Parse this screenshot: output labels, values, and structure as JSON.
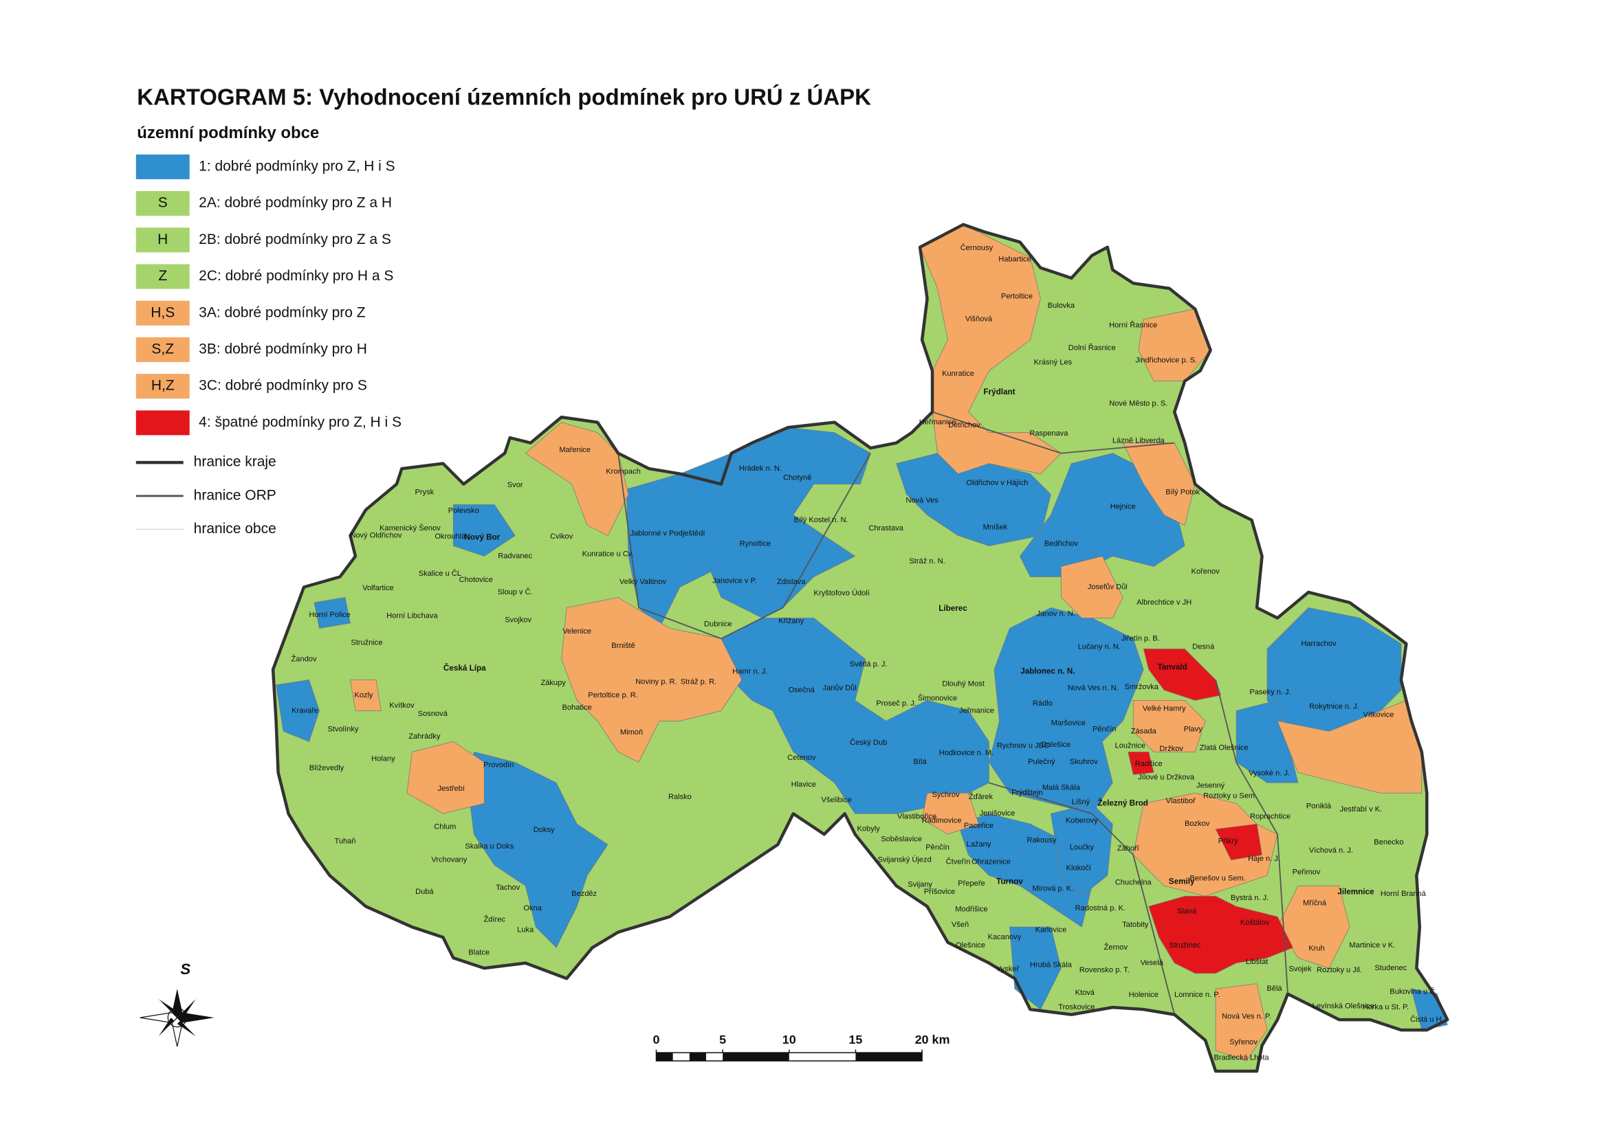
{
  "title": "KARTOGRAM 5: Vyhodnocení územních podmínek pro URÚ z ÚAPK",
  "legend": {
    "title": "územní podmínky obce",
    "items": [
      {
        "label": "1: dobré podmínky pro Z, H i S",
        "color": "#2f8fcf"
      },
      {
        "code": "S",
        "label": "2A: dobré podmínky pro Z a H",
        "color": "#a5d46c"
      },
      {
        "code": "H",
        "label": "2B: dobré podmínky pro Z a S",
        "color": "#a5d46c"
      },
      {
        "code": "Z",
        "label": "2C: dobré podmínky pro H a S",
        "color": "#a5d46c"
      },
      {
        "code": "H,S",
        "label": "3A: dobré podmínky pro Z",
        "color": "#f5a864"
      },
      {
        "code": "S,Z",
        "label": "3B: dobré podmínky pro H",
        "color": "#f5a864"
      },
      {
        "code": "H,Z",
        "label": "3C: dobré podmínky pro S",
        "color": "#f5a864"
      },
      {
        "label": "4: špatné podmínky pro Z, H i S",
        "color": "#e3161c"
      }
    ],
    "lines": [
      {
        "label": "hranice kraje",
        "color": "#333333"
      },
      {
        "label": "hranice ORP",
        "color": "#555555"
      },
      {
        "label": "hranice obce",
        "color": "#dddddd"
      }
    ]
  },
  "north_arrow": "S",
  "scale_bar": {
    "ticks": [
      0,
      5,
      10,
      15,
      {
        "value": 20,
        "label": "20 km"
      }
    ]
  },
  "municipalities": [
    "Černousy",
    "Habartice",
    "Pertoltice",
    "Bulovka",
    "Višňová",
    "Horní Řasnice",
    "Dolní Řasnice",
    "Krásný Les",
    "Jindřichovice p. S.",
    "Kunratice",
    "Frýdlant",
    "Nové Město p. S.",
    "Heřmanice",
    "Dětřichov",
    "Raspenava",
    "Lázně Libverda",
    "Oldřichov v Hájích",
    "Bílý Potok",
    "Hejnice",
    "Mníšek",
    "Nová Ves",
    "Hrádek n. N.",
    "Chotyně",
    "Bílý Kostel n. N.",
    "Chrastava",
    "Jablonné v Podještědí",
    "Rynoltice",
    "Mařenice",
    "Krompach",
    "Svor",
    "Prysk",
    "Polevsko",
    "Kamenický Šenov",
    "Nový Oldřichov",
    "Okrouhlá",
    "Nový Bor",
    "Radvanec",
    "Cvikov",
    "Kunratice u Cv.",
    "Sloup v Č.",
    "Skalice u ČL",
    "Chotovice",
    "Svojkov",
    "Velký Valtinov",
    "Janovice v P.",
    "Zdislava",
    "Křižany",
    "Kryštofovo Údolí",
    "Stráž n. N.",
    "Liberec",
    "Bedřichov",
    "Josefův Důl",
    "Kořenov",
    "Albrechtice v JH",
    "Janov n. N.",
    "Lučany n. N.",
    "Jiřetín p. B.",
    "Desná",
    "Tanvald",
    "Harrachov",
    "Jablonec n. N.",
    "Nová Ves n. N.",
    "Smržovka",
    "Paseky n. J.",
    "Rokytnice n. J.",
    "Vítkovice",
    "Velké Hamry",
    "Rádlo",
    "Maršovice",
    "Dlouhý Most",
    "Šimonovice",
    "Jeřmanice",
    "Proseč p. J.",
    "Světlá p. J.",
    "Janův Důl",
    "Osečná",
    "Hamr n. J.",
    "Dubnice",
    "Velenice",
    "Brniště",
    "Noviny p. R.",
    "Stráž p. R.",
    "Pertoltice p. R.",
    "Mimoň",
    "Bohatice",
    "Zákupy",
    "Česká Lípa",
    "Horní Libchava",
    "Volfartice",
    "Horní Police",
    "Stružnice",
    "Žandov",
    "Kozly",
    "Kvítkov",
    "Sosnová",
    "Kravaře",
    "Stvolínky",
    "Zahrádky",
    "Holany",
    "Blíževedly",
    "Provodín",
    "Jestřebí",
    "Ralsko",
    "Chlum",
    "Doksy",
    "Skalka u Doks",
    "Tuhaň",
    "Vrchovany",
    "Tachov",
    "Dubá",
    "Okna",
    "Bezděz",
    "Ždírec",
    "Luka",
    "Blatce",
    "Český Dub",
    "Bílá",
    "Hodkovice n. M.",
    "Cetenov",
    "Hlavice",
    "Všelibice",
    "Rychnov u JBC",
    "Dalešice",
    "Pulečný",
    "Skuhrov",
    "Pěnčín",
    "Zásada",
    "Plavy",
    "Zlatá Olešnice",
    "Loužnice",
    "Držkov",
    "Radčice",
    "Jílové u Držkova",
    "Vysoké n. J.",
    "Frýdštejn",
    "Malá Skála",
    "Sychrov",
    "Žďárek",
    "Jenišovice",
    "Vlastibořice",
    "Kobyly",
    "Líšný",
    "Železný Brod",
    "Jesenný",
    "Vlastiboř",
    "Roztoky u Sem.",
    "Poniklá",
    "Jestřabí v K.",
    "Roprachtice",
    "Koberovy",
    "Bozkov",
    "Příkrý",
    "Benecko",
    "Rakousy",
    "Loučky",
    "Záhoří",
    "Víchová n. J.",
    "Háje n. J.",
    "Turnov",
    "Klokočí",
    "Semily",
    "Chuchelna",
    "Benešov u Sem.",
    "Peřimov",
    "Jilemnice",
    "Mírová p. K.",
    "Bystrá n. J.",
    "Radostná p. K.",
    "Slaná",
    "Koštálov",
    "Mříčná",
    "Horní Branná",
    "Modřišice",
    "Karlovice",
    "Tatobity",
    "Stružinec",
    "Žernov",
    "Kruh",
    "Martinice v K.",
    "Kacanovy",
    "Olešnice",
    "Libštát",
    "Veselá",
    "Svojek",
    "Roztoky u Jil.",
    "Studenec",
    "Vyskeř",
    "Hrubá Skála",
    "Rovensko p. T.",
    "Bělá",
    "Ktová",
    "Holenice",
    "Lomnice n. P.",
    "Bukovina u Č.",
    "Levínská Olešnice",
    "Horka u St. P.",
    "Čistá u H.",
    "Troskovice",
    "Nová Ves n. P.",
    "Syřenov",
    "Bradlecká Lhota",
    "Lažany",
    "Pěnčín",
    "Soběslavice",
    "Svijanský Újezd",
    "Svijany",
    "Ohrazenice",
    "Čtveřín",
    "Přepeře",
    "Příšovice",
    "Radimovice",
    "Paceřice",
    "Všeň"
  ]
}
